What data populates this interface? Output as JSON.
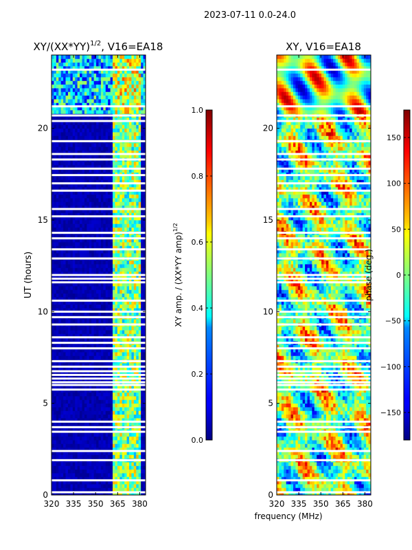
{
  "suptitle": "2023-07-11 0.0-24.0",
  "chart_data": [
    {
      "type": "heatmap",
      "title": "XY/(XX*YY)$^{1/2}$, V16=EA18",
      "title_main": "XY/(XX*YY)",
      "title_sup": "1/2",
      "title_rest": ", V16=EA18",
      "xlabel": "",
      "ylabel": "UT (hours)",
      "xlim": [
        320,
        384
      ],
      "ylim": [
        0,
        24
      ],
      "xticks": [
        320,
        335,
        350,
        365,
        380
      ],
      "yticks": [
        0,
        5,
        10,
        15,
        20
      ],
      "colorbar": {
        "label_main": "XY amp. / (XX*YY amp)",
        "label_sup": "1/2",
        "range": [
          0.0,
          1.0
        ],
        "ticks": [
          0.0,
          0.2,
          0.4,
          0.6,
          0.8,
          1.0
        ],
        "tick_labels": [
          "0.0",
          "0.2",
          "0.4",
          "0.6",
          "0.8",
          "1.0"
        ],
        "colormap": "jet"
      }
    },
    {
      "type": "heatmap",
      "title": "XY, V16=EA18",
      "xlabel": "frequency (MHz)",
      "ylabel": "",
      "xlim": [
        320,
        384
      ],
      "ylim": [
        0,
        24
      ],
      "xticks": [
        320,
        335,
        350,
        365,
        380
      ],
      "yticks": [
        0,
        5,
        10,
        15,
        20
      ],
      "colorbar": {
        "label": "phase (deg.)",
        "range": [
          -180,
          180
        ],
        "ticks": [
          -150,
          -100,
          -50,
          0,
          50,
          100,
          150
        ],
        "tick_labels": [
          "−150",
          "−100",
          "−50",
          "0",
          "50",
          "100",
          "150"
        ],
        "colormap": "jet"
      }
    }
  ]
}
